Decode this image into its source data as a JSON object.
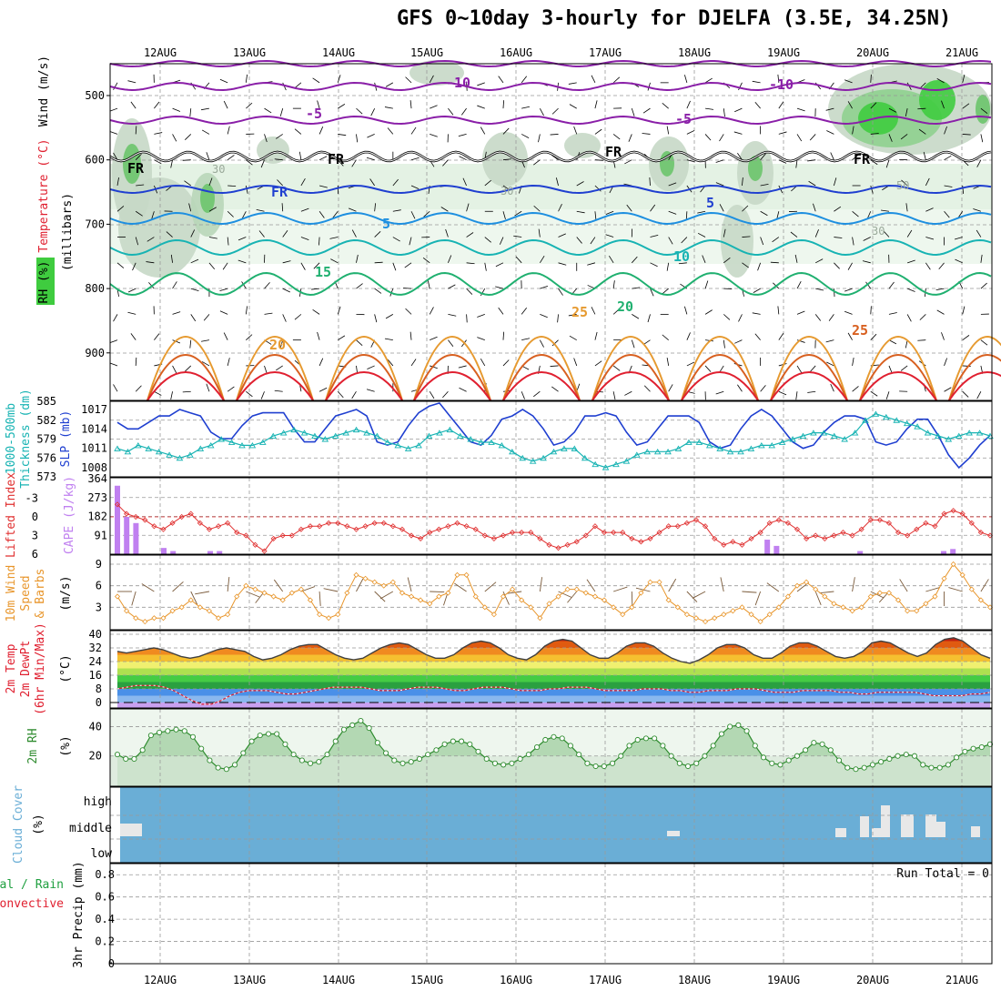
{
  "title": "GFS 0~10day 3-hourly for DJELFA (3.5E, 34.25N)",
  "dates": [
    "12AUG",
    "13AUG",
    "14AUG",
    "15AUG",
    "16AUG",
    "17AUG",
    "18AUG",
    "19AUG",
    "20AUG",
    "21AUG"
  ],
  "colors": {
    "purple": "#8a1fa8",
    "blue_dark": "#1f3fd0",
    "blue": "#1e8fe0",
    "teal": "#17b3b3",
    "green_c": "#20b070",
    "orange": "#e69a30",
    "orange_dark": "#d86020",
    "red": "#e02030",
    "cloud": "#6aaed6",
    "rh_fill": "#8ec98e",
    "rh_line": "#2e8b2e",
    "cape": "#c080f0",
    "li": "#e03030",
    "wind10": "#e8962c"
  },
  "panel_labels": {
    "upper": [
      "Wind (m/s)",
      "Temperature (°C)",
      "RH (%)",
      "(millibars)"
    ],
    "thick": [
      "1000-500mb",
      "Thickness (dm)",
      "SLP (mb)"
    ],
    "li_cape": [
      "Lifted Index",
      "CAPE (J/kg)"
    ],
    "wind10": [
      "10m Wind",
      "Speed",
      "& Barbs",
      "(m/s)"
    ],
    "temp": [
      "2m Temp",
      "2m DewPt",
      "(6hr Min/Max)",
      "(°C)"
    ],
    "rh": [
      "2m RH",
      "(%)"
    ],
    "cloud": [
      "Cloud Cover",
      "(%)"
    ],
    "precip": [
      "Total / Rain",
      "Convective",
      "3hr Precip (mm)"
    ]
  },
  "run_total": "Run Total = 0",
  "chart_data": [
    {
      "type": "heatmap",
      "name": "upper-air",
      "y_axis": {
        "ylabel": "(millibars)",
        "ticks": [
          500,
          600,
          700,
          800,
          900
        ]
      },
      "contour_labels": {
        "temperature": [
          "-10",
          "-10",
          "-5",
          "-5",
          "FR",
          "FR",
          "FR",
          "FR",
          "FR",
          "5",
          "5",
          "10",
          "15",
          "20",
          "20",
          "25",
          "25",
          "30"
        ],
        "rh": [
          "30",
          "30",
          "50",
          "30"
        ]
      }
    },
    {
      "type": "line",
      "name": "thickness-slp",
      "left_axis": {
        "label": "1000-500mb Thickness (dm)",
        "ticks": [
          573,
          576,
          579,
          582,
          585
        ]
      },
      "right_axis": {
        "label": "SLP (mb)",
        "ticks": [
          1008,
          1011,
          1014,
          1017
        ]
      },
      "series": [
        {
          "name": "SLP",
          "color": "#1f3fd0",
          "values": [
            1015.0,
            1014.0,
            1014.0,
            1015.0,
            1016.0,
            1016.0,
            1017.0,
            1016.5,
            1016.0,
            1013.5,
            1012.5,
            1012.5,
            1014.5,
            1016.0,
            1016.5,
            1016.5,
            1016.5,
            1014.0,
            1012.0,
            1012.0,
            1014.0,
            1016.0,
            1016.5,
            1017.0,
            1016.0,
            1012.0,
            1011.5,
            1012.0,
            1014.5,
            1016.5,
            1017.5,
            1018.0,
            1016.0,
            1014.0,
            1012.0,
            1011.5,
            1013.0,
            1015.5,
            1016.0,
            1017.0,
            1016.0,
            1014.0,
            1011.5,
            1012.0,
            1013.5,
            1016.0,
            1016.0,
            1016.5,
            1016.0,
            1013.5,
            1011.5,
            1012.0,
            1014.0,
            1016.0,
            1016.0,
            1016.0,
            1015.0,
            1012.0,
            1011.0,
            1011.5,
            1014.0,
            1016.0,
            1017.0,
            1016.0,
            1014.0,
            1012.0,
            1011.0,
            1011.5,
            1013.5,
            1015.0,
            1016.0,
            1016.0,
            1015.5,
            1012.0,
            1011.5,
            1012.0,
            1014.0,
            1015.5,
            1015.5,
            1013.0,
            1010.0,
            1008.0,
            1009.5,
            1011.5,
            1013.0
          ]
        },
        {
          "name": "Thickness",
          "color": "#17b3b3",
          "values": [
            577.5,
            577.0,
            578.0,
            577.5,
            577.0,
            576.5,
            576.0,
            576.5,
            577.5,
            578.0,
            579.0,
            578.5,
            578.0,
            578.0,
            578.5,
            579.5,
            580.0,
            580.5,
            580.0,
            579.5,
            579.0,
            579.5,
            580.0,
            580.5,
            580.0,
            579.5,
            578.5,
            578.0,
            577.5,
            578.0,
            579.5,
            580.0,
            580.5,
            579.5,
            579.0,
            578.5,
            578.5,
            578.0,
            577.0,
            576.0,
            575.5,
            576.0,
            577.0,
            577.5,
            577.5,
            576.0,
            575.0,
            574.5,
            575.0,
            575.5,
            576.5,
            577.0,
            577.0,
            577.0,
            577.5,
            578.5,
            578.5,
            578.0,
            577.5,
            577.0,
            577.0,
            577.5,
            578.0,
            578.0,
            578.5,
            579.0,
            579.5,
            580.0,
            580.0,
            579.5,
            579.0,
            580.0,
            582.0,
            583.0,
            582.5,
            582.0,
            581.5,
            581.0,
            580.0,
            579.5,
            579.0,
            579.5,
            580.0,
            580.0,
            579.5
          ]
        }
      ]
    },
    {
      "type": "bar",
      "name": "lifted-index-cape",
      "left_axis": {
        "label": "Lifted Index",
        "ticks": [
          "-3",
          "0",
          "3",
          "6"
        ]
      },
      "right_axis": {
        "label": "CAPE (J/kg)",
        "ticks": [
          91,
          182,
          273,
          364
        ]
      },
      "series": [
        {
          "name": "CAPE",
          "color": "#c080f0",
          "values": [
            330,
            180,
            150,
            0,
            0,
            30,
            15,
            0,
            0,
            0,
            15,
            15,
            0,
            0,
            0,
            0,
            0,
            0,
            0,
            0,
            0,
            0,
            0,
            0,
            0,
            0,
            0,
            0,
            0,
            0,
            0,
            0,
            0,
            0,
            0,
            0,
            0,
            0,
            0,
            0,
            0,
            0,
            0,
            0,
            0,
            0,
            0,
            0,
            0,
            0,
            0,
            0,
            0,
            0,
            0,
            0,
            0,
            0,
            0,
            0,
            0,
            0,
            0,
            0,
            0,
            0,
            0,
            0,
            0,
            0,
            70,
            40,
            0,
            0,
            0,
            0,
            0,
            0,
            0,
            0,
            15,
            0,
            0,
            0,
            0,
            0,
            0,
            0,
            0,
            15,
            25,
            0,
            0,
            0,
            0
          ]
        },
        {
          "name": "Lifted Index",
          "color": "#e03030",
          "values": [
            -2.0,
            -0.5,
            0.0,
            0.5,
            1.5,
            2.0,
            1.0,
            0.0,
            -0.5,
            1.0,
            2.0,
            1.5,
            1.0,
            2.5,
            3.0,
            4.5,
            5.5,
            3.5,
            3.0,
            3.0,
            2.0,
            1.5,
            1.5,
            1.0,
            1.0,
            1.5,
            2.0,
            1.5,
            1.0,
            1.0,
            1.5,
            2.0,
            3.0,
            3.5,
            2.5,
            2.0,
            1.5,
            1.0,
            1.5,
            2.0,
            3.0,
            3.5,
            3.0,
            2.5,
            2.5,
            2.5,
            3.5,
            4.5,
            5.0,
            4.5,
            4.0,
            3.0,
            1.5,
            2.5,
            2.5,
            2.5,
            3.5,
            4.0,
            3.5,
            2.5,
            1.5,
            1.5,
            1.0,
            0.5,
            1.5,
            3.5,
            4.5,
            4.0,
            4.5,
            3.5,
            2.5,
            1.0,
            0.5,
            1.0,
            2.0,
            3.5,
            3.0,
            3.5,
            3.0,
            2.5,
            3.0,
            2.0,
            0.5,
            0.5,
            1.0,
            2.5,
            3.0,
            2.0,
            1.0,
            1.5,
            -0.5,
            -1.0,
            -0.5,
            1.0,
            2.5,
            3.0
          ]
        }
      ]
    },
    {
      "type": "line",
      "name": "10m-wind",
      "y_axis": {
        "label": "10m Wind Speed & Barbs (m/s)",
        "ticks": [
          3,
          6,
          9
        ]
      },
      "series": [
        {
          "name": "Speed",
          "color": "#e8962c",
          "values": [
            4.5,
            2.5,
            1.5,
            1.0,
            1.5,
            1.5,
            2.5,
            3.0,
            4.0,
            3.0,
            2.5,
            1.5,
            2.0,
            4.5,
            6.0,
            5.5,
            5.0,
            4.5,
            4.0,
            5.0,
            5.5,
            4.0,
            2.0,
            1.5,
            2.0,
            5.0,
            7.5,
            7.0,
            6.5,
            6.0,
            6.5,
            5.0,
            4.5,
            4.0,
            3.5,
            4.5,
            5.0,
            7.5,
            7.5,
            4.5,
            3.0,
            2.0,
            4.5,
            5.5,
            4.0,
            3.0,
            1.5,
            3.5,
            4.5,
            5.5,
            5.5,
            5.0,
            4.5,
            4.0,
            3.0,
            2.0,
            3.0,
            5.0,
            6.5,
            6.5,
            4.0,
            3.0,
            2.0,
            1.5,
            1.0,
            1.5,
            2.0,
            2.5,
            3.0,
            2.0,
            1.0,
            2.0,
            3.0,
            4.5,
            6.0,
            6.5,
            5.5,
            4.5,
            3.5,
            3.0,
            2.5,
            3.0,
            4.5,
            5.0,
            5.0,
            4.0,
            2.5,
            2.5,
            3.5,
            4.5,
            7.0,
            9.0,
            7.5,
            5.5,
            4.0,
            3.0
          ]
        }
      ]
    },
    {
      "type": "line",
      "name": "2m-temp-dewpoint",
      "y_axis": {
        "label": "2m Temp / 2m DewPt (°C)",
        "ticks": [
          0,
          8,
          16,
          24,
          32,
          40
        ]
      },
      "series": [
        {
          "name": "2m Temp",
          "color": "#404040",
          "values": [
            30,
            29,
            30,
            31,
            32,
            31,
            29,
            27,
            26,
            27,
            29,
            31,
            32,
            31,
            30,
            27,
            25,
            26,
            28,
            31,
            33,
            34,
            34,
            31,
            28,
            26,
            25,
            26,
            29,
            32,
            34,
            35,
            34,
            31,
            28,
            26,
            26,
            28,
            32,
            35,
            36,
            35,
            32,
            28,
            26,
            25,
            28,
            33,
            36,
            37,
            36,
            32,
            28,
            26,
            26,
            29,
            33,
            35,
            35,
            33,
            29,
            26,
            24,
            23,
            25,
            28,
            32,
            34,
            34,
            32,
            28,
            26,
            26,
            29,
            33,
            35,
            35,
            33,
            30,
            27,
            26,
            27,
            30,
            35,
            36,
            35,
            32,
            29,
            27,
            29,
            34,
            37,
            38,
            36,
            32,
            28,
            26
          ]
        },
        {
          "name": "2m DewPt",
          "color": "#8b4a4a",
          "values": [
            8,
            9,
            10,
            10,
            10,
            9,
            7,
            4,
            1,
            -1,
            -1,
            1,
            4,
            6,
            7,
            7,
            7,
            6,
            5,
            5,
            6,
            7,
            8,
            9,
            9,
            9,
            9,
            8,
            7,
            7,
            7,
            8,
            9,
            9,
            9,
            8,
            7,
            7,
            8,
            9,
            9,
            9,
            8,
            7,
            7,
            7,
            8,
            8,
            9,
            9,
            9,
            8,
            7,
            7,
            7,
            7,
            8,
            8,
            8,
            7,
            7,
            6,
            6,
            7,
            7,
            7,
            8,
            8,
            8,
            7,
            6,
            6,
            6,
            7,
            7,
            7,
            7,
            6,
            6,
            5,
            5,
            6,
            6,
            6,
            6,
            6,
            5,
            4,
            4,
            4,
            4,
            5,
            5,
            6
          ]
        }
      ]
    },
    {
      "type": "area",
      "name": "2m-rh",
      "y_axis": {
        "label": "2m RH (%)",
        "ticks": [
          20,
          40
        ]
      },
      "series": [
        {
          "name": "2m RH",
          "color": "#2e8b2e",
          "values": [
            21,
            18,
            18,
            24,
            34,
            36,
            37,
            38,
            37,
            33,
            25,
            17,
            12,
            11,
            14,
            22,
            30,
            34,
            35,
            35,
            28,
            21,
            17,
            15,
            16,
            21,
            30,
            38,
            41,
            44,
            39,
            29,
            22,
            17,
            15,
            16,
            18,
            21,
            24,
            28,
            30,
            30,
            28,
            23,
            18,
            15,
            14,
            15,
            18,
            21,
            26,
            31,
            33,
            32,
            27,
            21,
            15,
            13,
            13,
            15,
            20,
            27,
            31,
            32,
            32,
            27,
            20,
            15,
            13,
            15,
            20,
            27,
            35,
            40,
            41,
            37,
            27,
            19,
            15,
            14,
            17,
            20,
            24,
            29,
            28,
            24,
            17,
            12,
            11,
            12,
            14,
            16,
            18,
            20,
            21,
            20,
            14,
            12,
            12,
            14,
            19,
            23,
            25,
            26,
            28
          ]
        }
      ]
    },
    {
      "type": "bar",
      "name": "cloud-cover",
      "y_axis": {
        "label": "Cloud Cover (%)",
        "ticks": [
          "high",
          "middle",
          "low"
        ]
      }
    },
    {
      "type": "line",
      "name": "3hr-precip",
      "y_axis": {
        "label": "3hr Precip (mm)",
        "ticks": [
          "0",
          "0.2",
          "0.4",
          "0.6",
          "0.8"
        ],
        "ylim": [
          0,
          0.9
        ]
      },
      "series": [
        {
          "name": "Total",
          "values": []
        },
        {
          "name": "Convective",
          "values": []
        }
      ]
    }
  ]
}
